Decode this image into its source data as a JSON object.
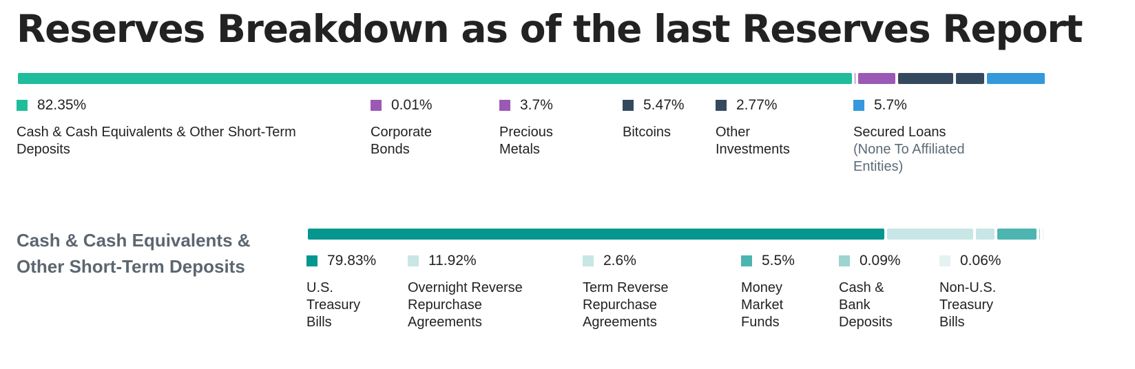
{
  "title": "Reserves Breakdown as of the last Reserves Report",
  "chart_data": [
    {
      "type": "bar",
      "subtype": "stacked-horizontal-100",
      "title": "Reserves Breakdown as of the last Reserves Report",
      "legend_placement": "below",
      "series": [
        {
          "label_lines": [
            "Cash & Cash Equivalents & Other Short-Term",
            "Deposits"
          ],
          "value": 82.35,
          "display": "82.35%",
          "color": "#1fbd9b"
        },
        {
          "label_lines": [
            "Corporate",
            "Bonds"
          ],
          "value": 0.01,
          "display": "0.01%",
          "color": "#9b59b6"
        },
        {
          "label_lines": [
            "Precious",
            "Metals"
          ],
          "value": 3.7,
          "display": "3.7%",
          "color": "#9b59b6"
        },
        {
          "label_lines": [
            "Bitcoins"
          ],
          "value": 5.47,
          "display": "5.47%",
          "color": "#34495e"
        },
        {
          "label_lines": [
            "Other",
            "Investments"
          ],
          "value": 2.77,
          "display": "2.77%",
          "color": "#34495e"
        },
        {
          "label_lines": [
            "Secured Loans"
          ],
          "sub_lines": [
            "(None To Affiliated",
            "Entities)"
          ],
          "value": 5.7,
          "display": "5.7%",
          "color": "#3498db"
        }
      ]
    },
    {
      "type": "bar",
      "subtype": "stacked-horizontal-100",
      "title_lines": [
        "Cash & Cash Equivalents &",
        "Other Short-Term Deposits"
      ],
      "legend_placement": "below",
      "series": [
        {
          "label_lines": [
            "U.S.",
            "Treasury",
            "Bills"
          ],
          "value": 79.83,
          "display": "79.83%",
          "color": "#05968f"
        },
        {
          "label_lines": [
            "Overnight Reverse",
            "Repurchase",
            "Agreements"
          ],
          "value": 11.92,
          "display": "11.92%",
          "color": "#c8e6e6"
        },
        {
          "label_lines": [
            "Term Reverse",
            "Repurchase",
            "Agreements"
          ],
          "value": 2.6,
          "display": "2.6%",
          "color": "#c8e6e6"
        },
        {
          "label_lines": [
            "Money",
            "Market",
            "Funds"
          ],
          "value": 5.5,
          "display": "5.5%",
          "color": "#4db5b0"
        },
        {
          "label_lines": [
            "Cash &",
            "Bank",
            "Deposits"
          ],
          "value": 0.09,
          "display": "0.09%",
          "color": "#9bd4d0"
        },
        {
          "label_lines": [
            "Non-U.S.",
            "Treasury",
            "Bills"
          ],
          "value": 0.06,
          "display": "0.06%",
          "color": "#e4f2f2"
        }
      ]
    }
  ]
}
